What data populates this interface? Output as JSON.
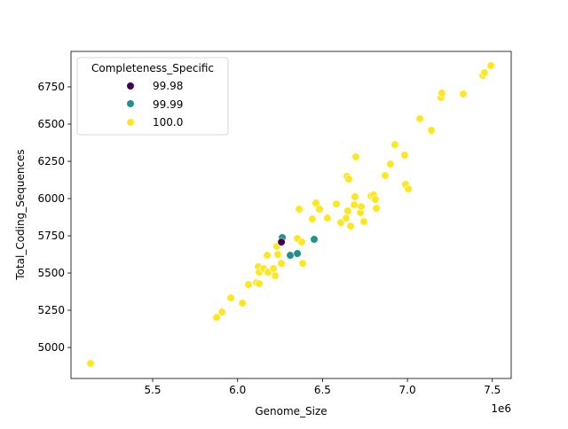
{
  "chart_data": {
    "type": "scatter",
    "title": "",
    "xlabel": "Genome_Size",
    "ylabel": "Total_Coding_Sequences",
    "x_offset_label": "1e6",
    "xlim": [
      5.019,
      7.611
    ],
    "ylim": [
      4792,
      6988
    ],
    "x_ticks": [
      5.5,
      6.0,
      6.5,
      7.0,
      7.5
    ],
    "x_tick_labels": [
      "5.5",
      "6.0",
      "6.5",
      "7.0",
      "7.5"
    ],
    "y_ticks": [
      5000,
      5250,
      5500,
      5750,
      6000,
      6250,
      6500,
      6750
    ],
    "y_tick_labels": [
      "5000",
      "5250",
      "5500",
      "5750",
      "6000",
      "6250",
      "6500",
      "6750"
    ],
    "grid": false,
    "legend": {
      "title": "Completeness_Specific",
      "placement": "top-left",
      "entries": [
        {
          "label": "99.98",
          "color": "#440154"
        },
        {
          "label": "99.99",
          "color": "#21918c"
        },
        {
          "label": "100.0",
          "color": "#fde725"
        }
      ]
    },
    "series": [
      {
        "name": "99.98",
        "color": "#440154",
        "points": [
          [
            6.258,
            5708
          ]
        ]
      },
      {
        "name": "99.99",
        "color": "#21918c",
        "points": [
          [
            6.263,
            5738
          ],
          [
            6.31,
            5619
          ],
          [
            6.352,
            5631
          ],
          [
            6.451,
            5726
          ]
        ]
      },
      {
        "name": "100.0",
        "color": "#fde725",
        "points": [
          [
            5.134,
            4893
          ],
          [
            5.876,
            5202
          ],
          [
            5.908,
            5238
          ],
          [
            5.96,
            5333
          ],
          [
            6.028,
            5298
          ],
          [
            6.064,
            5423
          ],
          [
            6.111,
            5435
          ],
          [
            6.127,
            5429
          ],
          [
            6.122,
            5542
          ],
          [
            6.127,
            5506
          ],
          [
            6.153,
            5530
          ],
          [
            6.179,
            5506
          ],
          [
            6.211,
            5530
          ],
          [
            6.221,
            5482
          ],
          [
            6.174,
            5619
          ],
          [
            6.237,
            5625
          ],
          [
            6.258,
            5565
          ],
          [
            6.231,
            5679
          ],
          [
            6.352,
            5732
          ],
          [
            6.378,
            5708
          ],
          [
            6.383,
            5565
          ],
          [
            6.362,
            5929
          ],
          [
            6.44,
            5863
          ],
          [
            6.461,
            5970
          ],
          [
            6.482,
            5929
          ],
          [
            6.529,
            5869
          ],
          [
            6.581,
            5964
          ],
          [
            6.608,
            5839
          ],
          [
            6.639,
            5869
          ],
          [
            6.649,
            5917
          ],
          [
            6.665,
            5815
          ],
          [
            6.686,
            5958
          ],
          [
            6.691,
            6012
          ],
          [
            6.723,
            5905
          ],
          [
            6.728,
            5946
          ],
          [
            6.743,
            5845
          ],
          [
            6.785,
            6018
          ],
          [
            6.801,
            6024
          ],
          [
            6.811,
            5994
          ],
          [
            6.817,
            5934
          ],
          [
            6.644,
            6149
          ],
          [
            6.655,
            6131
          ],
          [
            6.696,
            6280
          ],
          [
            6.869,
            6155
          ],
          [
            6.9,
            6232
          ],
          [
            6.926,
            6363
          ],
          [
            6.984,
            6292
          ],
          [
            6.989,
            6095
          ],
          [
            7.005,
            6065
          ],
          [
            7.073,
            6536
          ],
          [
            7.141,
            6458
          ],
          [
            7.198,
            6678
          ],
          [
            7.203,
            6708
          ],
          [
            7.329,
            6702
          ],
          [
            7.444,
            6827
          ],
          [
            7.454,
            6845
          ],
          [
            7.491,
            6893
          ]
        ]
      }
    ]
  }
}
